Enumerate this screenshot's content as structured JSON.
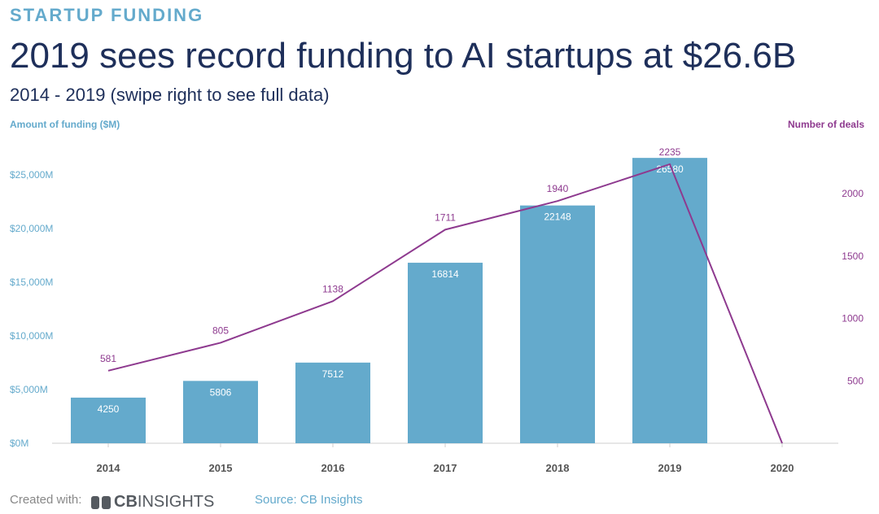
{
  "header": {
    "eyebrow": "STARTUP FUNDING",
    "title": "2019 sees record funding to AI startups at $26.6B",
    "subtitle": "2014 - 2019 (swipe right to see full data)"
  },
  "colors": {
    "bar": "#64aacc",
    "line": "#8e3a8f",
    "left_axis": "#64aacc",
    "eyebrow": "#64aacc",
    "source": "#64aacc"
  },
  "chart_data": {
    "type": "bar+line",
    "categories": [
      "2014",
      "2015",
      "2016",
      "2017",
      "2018",
      "2019",
      "2020"
    ],
    "series": [
      {
        "name": "Amount of funding ($M)",
        "type": "bar",
        "axis": "left",
        "values": [
          4250,
          5806,
          7512,
          16814,
          22148,
          26580,
          null
        ],
        "labels": [
          "4250",
          "5806",
          "7512",
          "16814",
          "22148",
          "26580",
          ""
        ]
      },
      {
        "name": "Number of deals",
        "type": "line",
        "axis": "right",
        "values": [
          581,
          805,
          1138,
          1711,
          1940,
          2235,
          0
        ],
        "labels": [
          "581",
          "805",
          "1138",
          "1711",
          "1940",
          "2235",
          ""
        ]
      }
    ],
    "y_left": {
      "title": "Amount of funding ($M)",
      "range": [
        0,
        27500
      ],
      "ticks": [
        0,
        5000,
        10000,
        15000,
        20000,
        25000
      ],
      "tick_labels": [
        "$0M",
        "$5,000M",
        "$10,000M",
        "$15,000M",
        "$20,000M",
        "$25,000M"
      ]
    },
    "y_right": {
      "title": "Number of deals",
      "range": [
        0,
        2500
      ],
      "ticks": [
        500,
        1000,
        1500,
        2000
      ],
      "tick_labels": [
        "500",
        "1000",
        "1500",
        "2000"
      ]
    },
    "grid": false,
    "legend": "none"
  },
  "footer": {
    "created_with": "Created with:",
    "logo_cb": "CB",
    "logo_text": "INSIGHTS",
    "source": "Source: CB Insights"
  }
}
